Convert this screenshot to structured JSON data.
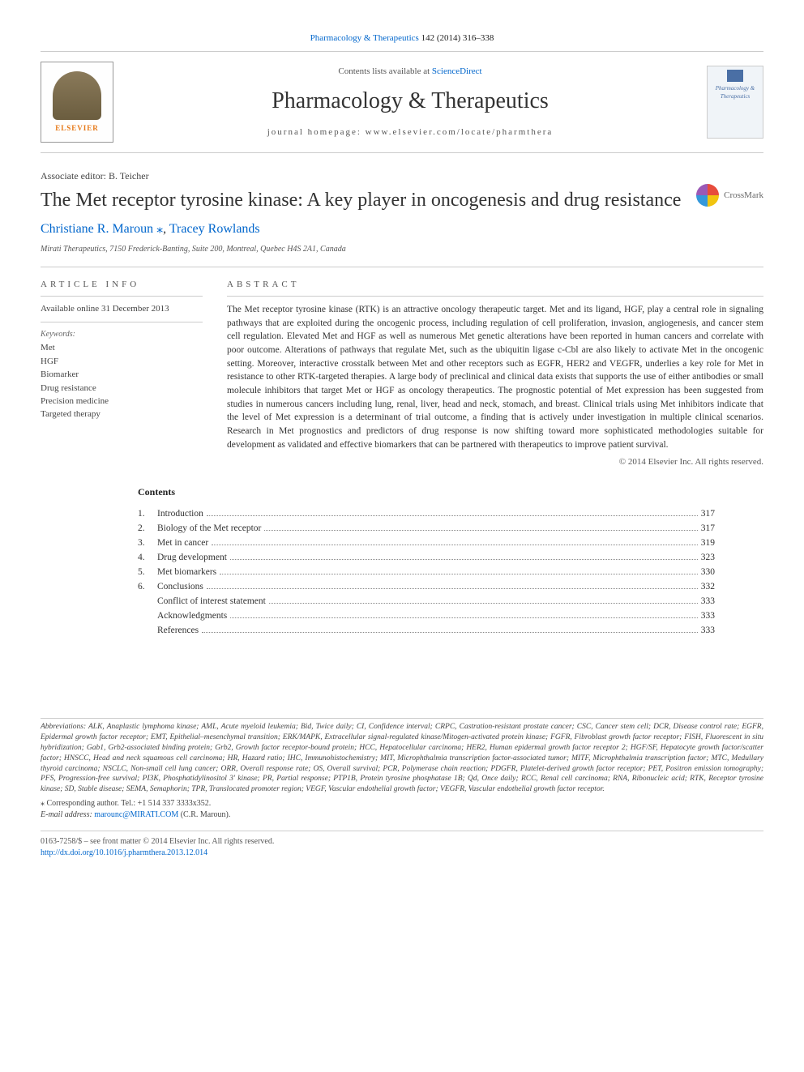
{
  "top_link": {
    "journal": "Pharmacology & Therapeutics",
    "vol": "142 (2014) 316–338"
  },
  "masthead": {
    "contents_prefix": "Contents lists available at ",
    "contents_link": "ScienceDirect",
    "journal": "Pharmacology & Therapeutics",
    "homepage_label": "journal homepage: ",
    "homepage_url": "www.elsevier.com/locate/pharmthera",
    "publisher_logo": "ELSEVIER",
    "cover_text": "Pharmacology & Therapeutics"
  },
  "article": {
    "editor": "Associate editor: B. Teicher",
    "title": "The Met receptor tyrosine kinase: A key player in oncogenesis and drug resistance",
    "authors_html": "Christiane R. Maroun",
    "author2": "Tracey Rowlands",
    "affiliation": "Mirati Therapeutics, 7150 Frederick-Banting, Suite 200, Montreal, Quebec H4S 2A1, Canada",
    "crossmark": "CrossMark"
  },
  "info": {
    "head": "ARTICLE INFO",
    "history": "Available online 31 December 2013",
    "kw_head": "Keywords:",
    "keywords": [
      "Met",
      "HGF",
      "Biomarker",
      "Drug resistance",
      "Precision medicine",
      "Targeted therapy"
    ]
  },
  "abstract": {
    "head": "ABSTRACT",
    "text": "The Met receptor tyrosine kinase (RTK) is an attractive oncology therapeutic target. Met and its ligand, HGF, play a central role in signaling pathways that are exploited during the oncogenic process, including regulation of cell proliferation, invasion, angiogenesis, and cancer stem cell regulation. Elevated Met and HGF as well as numerous Met genetic alterations have been reported in human cancers and correlate with poor outcome. Alterations of pathways that regulate Met, such as the ubiquitin ligase c-Cbl are also likely to activate Met in the oncogenic setting. Moreover, interactive crosstalk between Met and other receptors such as EGFR, HER2 and VEGFR, underlies a key role for Met in resistance to other RTK-targeted therapies. A large body of preclinical and clinical data exists that supports the use of either antibodies or small molecule inhibitors that target Met or HGF as oncology therapeutics. The prognostic potential of Met expression has been suggested from studies in numerous cancers including lung, renal, liver, head and neck, stomach, and breast. Clinical trials using Met inhibitors indicate that the level of Met expression is a determinant of trial outcome, a finding that is actively under investigation in multiple clinical scenarios. Research in Met prognostics and predictors of drug response is now shifting toward more sophisticated methodologies suitable for development as validated and effective biomarkers that can be partnered with therapeutics to improve patient survival.",
    "copyright": "© 2014 Elsevier Inc. All rights reserved."
  },
  "contents": {
    "title": "Contents",
    "items": [
      {
        "n": "1.",
        "label": "Introduction",
        "page": "317"
      },
      {
        "n": "2.",
        "label": "Biology of the Met receptor",
        "page": "317"
      },
      {
        "n": "3.",
        "label": "Met in cancer",
        "page": "319"
      },
      {
        "n": "4.",
        "label": "Drug development",
        "page": "323"
      },
      {
        "n": "5.",
        "label": "Met biomarkers",
        "page": "330"
      },
      {
        "n": "6.",
        "label": "Conclusions",
        "page": "332"
      },
      {
        "n": "",
        "label": "Conflict of interest statement",
        "page": "333"
      },
      {
        "n": "",
        "label": "Acknowledgments",
        "page": "333"
      },
      {
        "n": "",
        "label": "References",
        "page": "333"
      }
    ]
  },
  "abbrev": {
    "lead": "Abbreviations:",
    "text": "ALK, Anaplastic lymphoma kinase; AML, Acute myeloid leukemia; Bid, Twice daily; CI, Confidence interval; CRPC, Castration-resistant prostate cancer; CSC, Cancer stem cell; DCR, Disease control rate; EGFR, Epidermal growth factor receptor; EMT, Epithelial–mesenchymal transition; ERK/MAPK, Extracellular signal-regulated kinase/Mitogen-activated protein kinase; FGFR, Fibroblast growth factor receptor; FISH, Fluorescent in situ hybridization; Gab1, Grb2-associated binding protein; Grb2, Growth factor receptor-bound protein; HCC, Hepatocellular carcinoma; HER2, Human epidermal growth factor receptor 2; HGF/SF, Hepatocyte growth factor/scatter factor; HNSCC, Head and neck squamous cell carcinoma; HR, Hazard ratio; IHC, Immunohistochemistry; MIT, Microphthalmia transcription factor-associated tumor; MITF, Microphthalmia transcription factor; MTC, Medullary thyroid carcinoma; NSCLC, Non-small cell lung cancer; ORR, Overall response rate; OS, Overall survival; PCR, Polymerase chain reaction; PDGFR, Platelet-derived growth factor receptor; PET, Positron emission tomography; PFS, Progression-free survival; PI3K, Phosphatidylinositol 3′ kinase; PR, Partial response; PTP1B, Protein tyrosine phosphatase 1B; Qd, Once daily; RCC, Renal cell carcinoma; RNA, Ribonucleic acid; RTK, Receptor tyrosine kinase; SD, Stable disease; SEMA, Semaphorin; TPR, Translocated promoter region; VEGF, Vascular endothelial growth factor; VEGFR, Vascular endothelial growth factor receptor."
  },
  "corr": {
    "star": "⁎",
    "line": "Corresponding author. Tel.: +1 514 337 3333x352.",
    "email_label": "E-mail address:",
    "email": "marounc@MIRATI.COM",
    "email_who": "(C.R. Maroun)."
  },
  "footer": {
    "front": "0163-7258/$ – see front matter © 2014 Elsevier Inc. All rights reserved.",
    "doi": "http://dx.doi.org/10.1016/j.pharmthera.2013.12.014"
  },
  "colors": {
    "link": "#0066cc",
    "rule": "#cccccc",
    "orange": "#e67817"
  }
}
